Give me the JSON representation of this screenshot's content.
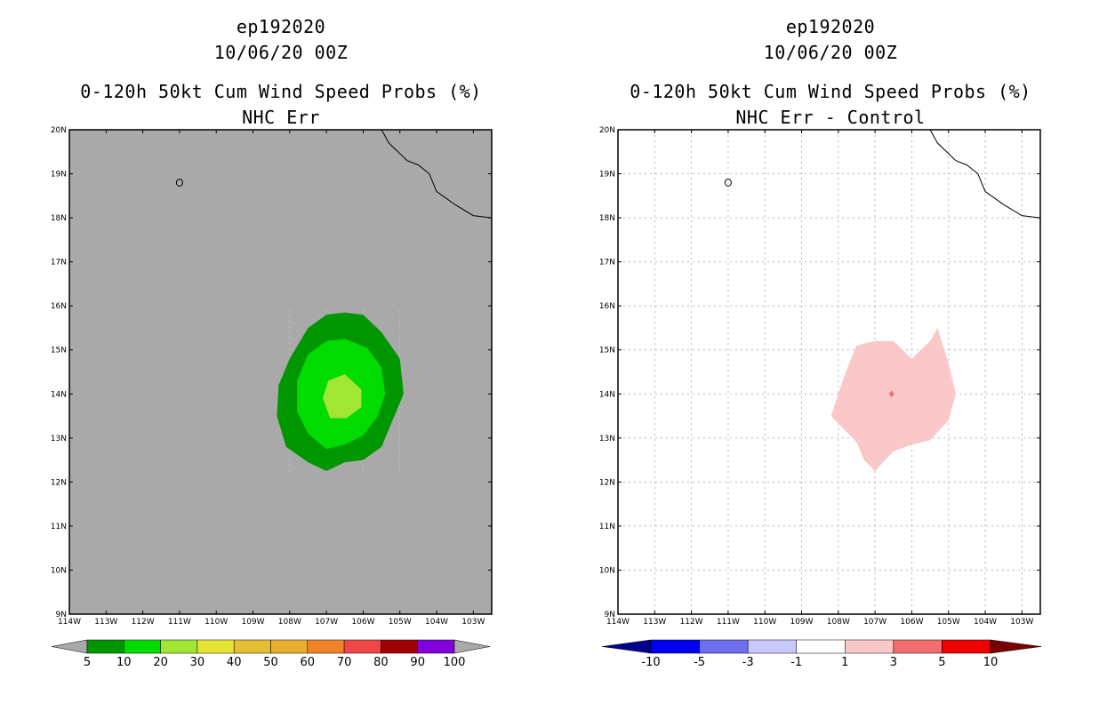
{
  "chart_data": [
    {
      "type": "heatmap",
      "storm": "ep192020",
      "date": "10/06/20 00Z",
      "title": "0-120h 50kt Cum Wind Speed Probs (%)",
      "subtitle": "NHC Err",
      "background_color": "#a9a9a9",
      "grid": false,
      "xlim": [
        -114,
        -102.5
      ],
      "ylim": [
        9,
        20
      ],
      "x_tick_labels": [
        "114W",
        "113W",
        "112W",
        "111W",
        "110W",
        "109W",
        "108W",
        "107W",
        "106W",
        "105W",
        "104W",
        "103W"
      ],
      "y_tick_labels": [
        "9N",
        "10N",
        "11N",
        "12N",
        "13N",
        "14N",
        "15N",
        "16N",
        "17N",
        "18N",
        "19N",
        "20N"
      ],
      "contours": [
        {
          "level": 5,
          "color": "#009600",
          "polygon": [
            [
              -107,
              12.25
            ],
            [
              -106.5,
              12.45
            ],
            [
              -106,
              12.5
            ],
            [
              -105.5,
              12.8
            ],
            [
              -105.2,
              13.4
            ],
            [
              -104.9,
              14
            ],
            [
              -105,
              14.8
            ],
            [
              -105.5,
              15.4
            ],
            [
              -106,
              15.8
            ],
            [
              -106.5,
              15.85
            ],
            [
              -107,
              15.8
            ],
            [
              -107.5,
              15.5
            ],
            [
              -108,
              14.8
            ],
            [
              -108.3,
              14.2
            ],
            [
              -108.35,
              13.5
            ],
            [
              -108.1,
              12.8
            ],
            [
              -107.5,
              12.45
            ]
          ]
        },
        {
          "level": 10,
          "color": "#00dc00",
          "polygon": [
            [
              -107,
              12.75
            ],
            [
              -106.5,
              12.85
            ],
            [
              -106,
              13.05
            ],
            [
              -105.6,
              13.5
            ],
            [
              -105.4,
              14
            ],
            [
              -105.5,
              14.6
            ],
            [
              -105.9,
              15.05
            ],
            [
              -106.5,
              15.25
            ],
            [
              -107,
              15.2
            ],
            [
              -107.5,
              14.9
            ],
            [
              -107.8,
              14.3
            ],
            [
              -107.8,
              13.6
            ],
            [
              -107.5,
              13.1
            ]
          ]
        },
        {
          "level": 20,
          "color": "#a0e632",
          "polygon": [
            [
              -106.9,
              13.45
            ],
            [
              -106.45,
              13.45
            ],
            [
              -106.05,
              13.7
            ],
            [
              -106.05,
              14.1
            ],
            [
              -106.5,
              14.45
            ],
            [
              -106.95,
              14.3
            ],
            [
              -107.1,
              13.9
            ]
          ]
        }
      ],
      "colorbar": {
        "labels": [
          "5",
          "10",
          "20",
          "30",
          "40",
          "50",
          "60",
          "70",
          "80",
          "90",
          "100"
        ],
        "colors": [
          "#009600",
          "#00dc00",
          "#a0e632",
          "#e6e632",
          "#e6be32",
          "#e6af2d",
          "#f08228",
          "#f04646",
          "#a00000",
          "#8200dc"
        ]
      }
    },
    {
      "type": "heatmap",
      "storm": "ep192020",
      "date": "10/06/20 00Z",
      "title": "0-120h 50kt Cum Wind Speed Probs (%)",
      "subtitle": "NHC Err - Control",
      "background_color": "#ffffff",
      "grid": true,
      "xlim": [
        -114,
        -102.5
      ],
      "ylim": [
        9,
        20
      ],
      "x_tick_labels": [
        "114W",
        "113W",
        "112W",
        "111W",
        "110W",
        "109W",
        "108W",
        "107W",
        "106W",
        "105W",
        "104W",
        "103W"
      ],
      "y_tick_labels": [
        "9N",
        "10N",
        "11N",
        "12N",
        "13N",
        "14N",
        "15N",
        "16N",
        "17N",
        "18N",
        "19N",
        "20N"
      ],
      "contours": [
        {
          "level": 1,
          "color": "#fac8c8",
          "polygon": [
            [
              -107,
              12.25
            ],
            [
              -106.5,
              12.7
            ],
            [
              -106,
              12.85
            ],
            [
              -105.5,
              12.95
            ],
            [
              -105,
              13.4
            ],
            [
              -104.8,
              14
            ],
            [
              -105,
              14.7
            ],
            [
              -105.3,
              15.5
            ],
            [
              -105.5,
              15.2
            ],
            [
              -106,
              14.8
            ],
            [
              -106.5,
              15.2
            ],
            [
              -107,
              15.2
            ],
            [
              -107.5,
              15.1
            ],
            [
              -107.8,
              14.5
            ],
            [
              -108,
              14
            ],
            [
              -108.2,
              13.5
            ],
            [
              -107.5,
              12.9
            ],
            [
              -107.3,
              12.5
            ]
          ]
        },
        {
          "level": 3,
          "color": "#f06e6e",
          "polygon": [
            [
              -106.55,
              13.92
            ],
            [
              -106.48,
              14
            ],
            [
              -106.55,
              14.08
            ],
            [
              -106.62,
              14
            ]
          ]
        }
      ],
      "colorbar": {
        "labels": [
          "-10",
          "-5",
          "-3",
          "-1",
          "1",
          "3",
          "5",
          "10"
        ],
        "colors": [
          "#640000",
          "#0000f0",
          "#6e6ef0",
          "#c8c8fa",
          "#ffffff",
          "#fac8c8",
          "#f06e6e",
          "#f00000",
          "#640000"
        ],
        "segment_colors": [
          "#0000c8",
          "#0000f0",
          "#6e6ef0",
          "#c8c8fa",
          "#ffffff",
          "#fac8c8",
          "#f06e6e",
          "#f00000"
        ],
        "left_arrow_color": "#00008c",
        "right_arrow_color": "#780000"
      }
    }
  ],
  "geography": {
    "coastline": [
      [
        -105.5,
        20
      ],
      [
        -105.3,
        19.7
      ],
      [
        -104.8,
        19.3
      ],
      [
        -104.5,
        19.2
      ],
      [
        -104.2,
        19
      ],
      [
        -104,
        18.6
      ],
      [
        -103.5,
        18.3
      ],
      [
        -103,
        18.05
      ],
      [
        -102.5,
        18
      ]
    ],
    "island_center": [
      -111,
      18.8
    ]
  }
}
